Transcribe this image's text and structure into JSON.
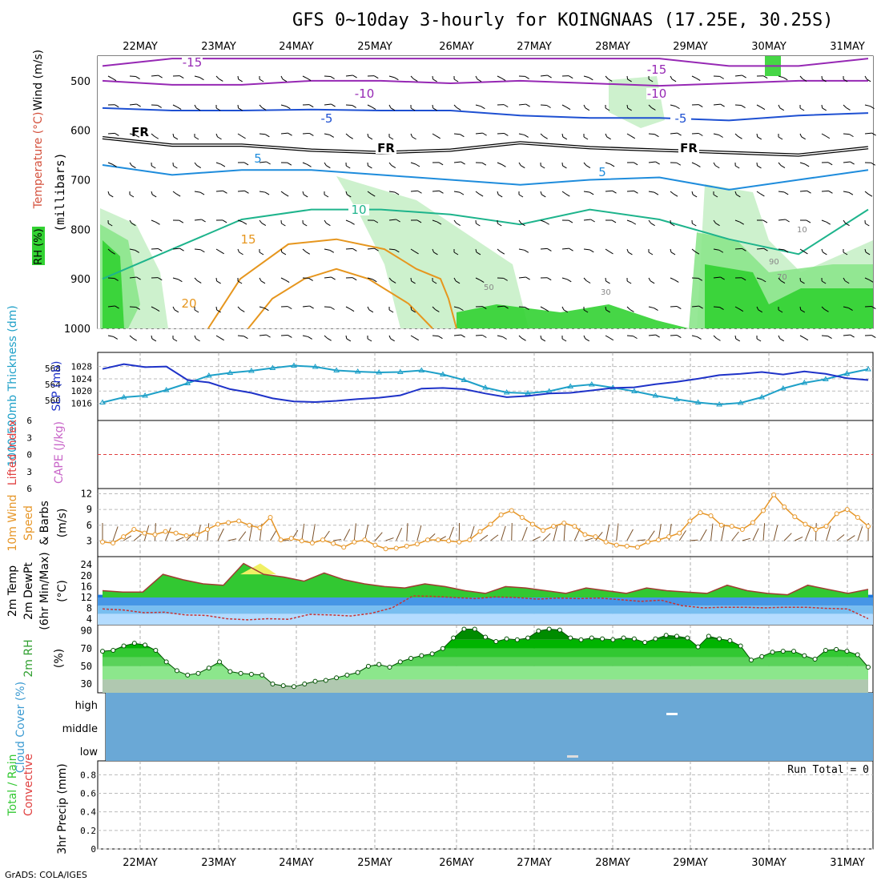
{
  "title": "GFS 0~10day 3-hourly for KOINGNAAS (17.25E, 30.25S)",
  "footer": "GrADS: COLA/IGES",
  "dates": [
    "22MAY",
    "23MAY",
    "24MAY",
    "25MAY",
    "26MAY",
    "27MAY",
    "28MAY",
    "29MAY",
    "30MAY",
    "31MAY"
  ],
  "colors": {
    "dark_green": "#00b400",
    "green": "#32d232",
    "light_green": "#8ce68c",
    "pale_green": "#c8f0c8",
    "blue_sky": "#6aa8d6",
    "sea_blue": "#1e64d2",
    "rh_top": "#008c00",
    "rh_bottom": "#c0c8c0"
  },
  "chart_data": [
    {
      "panel": "upper-air",
      "type": "contour",
      "ylabel": "(millibars)",
      "yticks": [
        500,
        600,
        700,
        800,
        900,
        1000
      ],
      "ylim": [
        1000,
        450
      ],
      "legend": [
        "Wind (m/s)",
        "Temperature (°C)",
        "RH (%)"
      ],
      "temperature_labels": [
        "-15",
        "-10",
        "-5",
        "FR",
        "5",
        "10",
        "15",
        "20"
      ],
      "rh_labels": [
        "10",
        "30",
        "50",
        "70",
        "90"
      ],
      "isotherm_pressures": {
        "-15": [
          470,
          455,
          455,
          455,
          455,
          455,
          455,
          455,
          455,
          470,
          470,
          455
        ],
        "-10": [
          500,
          508,
          508,
          500,
          500,
          505,
          500,
          505,
          510,
          505,
          500,
          500
        ],
        "-5": [
          555,
          560,
          560,
          558,
          560,
          560,
          570,
          575,
          575,
          580,
          570,
          565
        ],
        "FR": [
          615,
          630,
          630,
          640,
          645,
          640,
          625,
          635,
          640,
          645,
          650,
          635
        ],
        "5": [
          670,
          690,
          680,
          680,
          690,
          700,
          710,
          700,
          695,
          720,
          700,
          680
        ],
        "10": [
          900,
          840,
          780,
          760,
          760,
          770,
          790,
          760,
          780,
          820,
          850,
          760
        ],
        "15": [
          1000,
          900,
          830,
          820,
          840,
          880,
          900,
          940,
          1000
        ],
        "20": [
          1000,
          940,
          900,
          880,
          900,
          950,
          1000
        ]
      }
    },
    {
      "panel": "thickness-slp",
      "type": "line",
      "ylabel_left": "1000-500mb Thickness (dm)",
      "ylabel_right": "SLP (mb)",
      "yticks_left": [
        560,
        564,
        568
      ],
      "yticks_right": [
        1016,
        1020,
        1024,
        1028
      ],
      "series": [
        {
          "name": "1000-500mb Thickness (dm)",
          "color": "#1ea0c8",
          "marker": "triangle",
          "values": [
            559.5,
            560.8,
            561.2,
            562.6,
            564.3,
            566.2,
            566.9,
            567.4,
            568.1,
            568.7,
            568.4,
            567.5,
            567.2,
            567.0,
            567.1,
            567.5,
            566.5,
            565.1,
            563.2,
            562.0,
            561.8,
            562.3,
            563.5,
            564.0,
            563.2,
            562.3,
            561.2,
            560.3,
            559.5,
            559.0,
            559.4,
            560.8,
            563.0,
            564.4,
            565.3,
            566.7,
            567.8
          ]
        },
        {
          "name": "SLP (mb)",
          "color": "#1e32c8",
          "marker": "none",
          "values": [
            1027.2,
            1028.8,
            1027.8,
            1028.0,
            1023.6,
            1022.8,
            1020.6,
            1019.4,
            1017.6,
            1016.6,
            1016.4,
            1016.8,
            1017.4,
            1017.8,
            1018.6,
            1020.8,
            1021.0,
            1020.6,
            1019.2,
            1018.0,
            1018.4,
            1019.2,
            1019.4,
            1020.2,
            1021.0,
            1021.2,
            1022.2,
            1023.0,
            1024.0,
            1025.2,
            1025.6,
            1026.2,
            1025.4,
            1026.4,
            1025.6,
            1024.2,
            1023.6
          ]
        }
      ]
    },
    {
      "panel": "lifted-cape",
      "type": "line",
      "ylabel_left": "Lifted Index",
      "ylabel_right": "CAPE (J/kg)",
      "yticks": [
        "6",
        "3",
        "0",
        "3",
        "6"
      ],
      "ylim": [
        6,
        -6
      ],
      "series": [
        {
          "name": "Lifted Index",
          "values": []
        }
      ]
    },
    {
      "panel": "wind10m",
      "type": "line",
      "ylabel": "10m Wind Speed & Barbs (m/s)",
      "yticks": [
        3,
        6,
        9,
        12
      ],
      "ylim": [
        0,
        13
      ],
      "series": [
        {
          "name": "10m Wind Speed",
          "color": "#e69628",
          "values": [
            2.8,
            2.6,
            3.8,
            5.2,
            4.5,
            4.2,
            4.8,
            4.5,
            4.0,
            4.2,
            5.2,
            6.2,
            6.5,
            6.8,
            6.0,
            5.5,
            7.5,
            3.2,
            3.5,
            3.0,
            2.6,
            3.2,
            2.5,
            1.8,
            2.8,
            3.2,
            2.2,
            1.5,
            1.6,
            2.0,
            2.4,
            3.2,
            3.2,
            3.0,
            2.8,
            3.2,
            4.8,
            6.2,
            8.0,
            8.8,
            7.5,
            6.2,
            5.0,
            5.8,
            6.4,
            5.8,
            4.2,
            3.8,
            2.8,
            2.2,
            2.0,
            1.8,
            2.8,
            3.2,
            3.8,
            4.5,
            6.8,
            8.4,
            7.8,
            6.0,
            5.8,
            5.2,
            6.5,
            8.8,
            11.8,
            9.5,
            7.6,
            6.2,
            5.2,
            5.8,
            8.2,
            9.0,
            7.5,
            5.8
          ]
        }
      ]
    },
    {
      "panel": "temp-dewpoint",
      "type": "area",
      "ylabel": "2m Temp 2m DewPt (6hr Min/Max) (°C)",
      "yticks": [
        4,
        8,
        12,
        16,
        20,
        24
      ],
      "ylim": [
        2,
        27
      ],
      "series": [
        {
          "name": "2m Temp (6hr Max)",
          "color": "#32c832",
          "values": [
            14.5,
            14.0,
            14.0,
            20.5,
            18.5,
            17.0,
            16.5,
            24.5,
            20.5,
            19.5,
            18.0,
            21.0,
            18.5,
            17.0,
            16.0,
            15.5,
            17.0,
            16.0,
            14.5,
            13.5,
            16.0,
            15.5,
            14.5,
            13.5,
            15.5,
            14.5,
            13.5,
            15.5,
            14.5,
            14.0,
            13.5,
            16.5,
            14.5,
            13.5,
            13.0,
            16.5,
            15.0,
            13.5,
            15.0
          ]
        },
        {
          "name": "2m DewPt",
          "color": "#c83232",
          "values": [
            7.8,
            7.4,
            6.4,
            6.6,
            5.6,
            5.4,
            4.2,
            3.8,
            4.2,
            4.0,
            5.8,
            5.6,
            5.2,
            6.2,
            8.2,
            12.6,
            12.4,
            12.0,
            11.6,
            12.2,
            12.0,
            11.4,
            11.8,
            11.6,
            11.8,
            11.2,
            10.6,
            11.0,
            9.0,
            8.2,
            8.4,
            8.4,
            8.2,
            8.4,
            8.4,
            8.0,
            7.8,
            4.2
          ]
        }
      ]
    },
    {
      "panel": "rh2m",
      "type": "area",
      "ylabel": "2m RH (%)",
      "yticks": [
        30,
        50,
        70,
        90
      ],
      "ylim": [
        20,
        97
      ],
      "series": [
        {
          "name": "2m RH",
          "color": "#008c00",
          "values": [
            67,
            68,
            73,
            76,
            74,
            68,
            55,
            45,
            40,
            42,
            48,
            55,
            44,
            42,
            41,
            40,
            30,
            28,
            27,
            30,
            33,
            34,
            37,
            40,
            43,
            50,
            52,
            49,
            55,
            59,
            62,
            64,
            70,
            82,
            92,
            92,
            83,
            78,
            81,
            80,
            82,
            90,
            92,
            91,
            82,
            80,
            82,
            81,
            80,
            82,
            81,
            77,
            81,
            85,
            84,
            82,
            72,
            84,
            81,
            79,
            73,
            57,
            61,
            66,
            67,
            67,
            62,
            58,
            68,
            69,
            67,
            63,
            49
          ]
        }
      ]
    },
    {
      "panel": "cloud",
      "type": "heatmap",
      "ylabel": "Cloud Cover (%)",
      "yticks": [
        "high",
        "middle",
        "low"
      ],
      "series": [
        {
          "name": "Cloud Cover",
          "values": [
            0,
            0,
            0
          ]
        }
      ]
    },
    {
      "panel": "precip",
      "type": "bar",
      "ylabel_left": "Total / Rain Convective",
      "ylabel": "3hr Precip (mm)",
      "yticks": [
        "0",
        "0.2",
        "0.4",
        "0.6",
        "0.8"
      ],
      "ylim": [
        0,
        0.95
      ],
      "run_total": "Run Total = 0",
      "series": [
        {
          "name": "3hr Precip",
          "values": []
        }
      ]
    }
  ]
}
